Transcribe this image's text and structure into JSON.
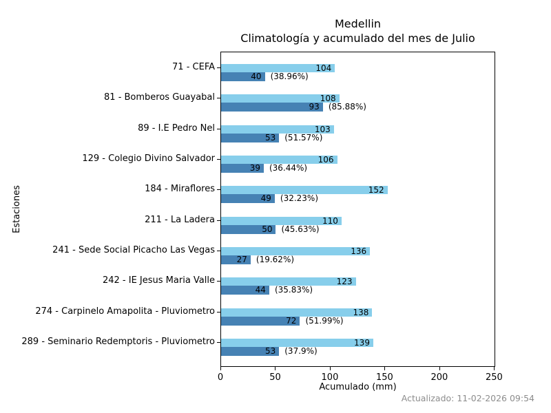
{
  "title": {
    "line1": "Medellin",
    "line2": "Climatología y acumulado del mes de Julio"
  },
  "footer": {
    "updated": "Actualizado: 11-02-2026 09:54"
  },
  "chart_data": {
    "type": "bar",
    "orientation": "horizontal",
    "title": "Medellin — Climatología y acumulado del mes de Julio",
    "xlabel": "Acumulado (mm)",
    "ylabel": "Estaciones",
    "xlim": [
      0,
      251
    ],
    "xticks": [
      0,
      50,
      100,
      150,
      200,
      250
    ],
    "grid": false,
    "legend": "none",
    "colors": {
      "climatologia": "#87CEEB",
      "acumulado": "#4682B4",
      "frame": "#000000",
      "footer_text": "#8c8c8c"
    },
    "categories": [
      "71 - CEFA",
      "81 - Bomberos Guayabal",
      "89 - I.E Pedro Nel",
      "129 - Colegio Divino Salvador",
      "184 - Miraflores",
      "211 - La Ladera",
      "241 - Sede Social Picacho Las Vegas",
      "242 - IE Jesus Maria Valle",
      "274 - Carpinelo Amapolita - Pluviometro",
      "289 - Seminario Redemptoris - Pluviometro"
    ],
    "series": [
      {
        "name": "Climatología",
        "color": "#87CEEB",
        "values": [
          104,
          108,
          103,
          106,
          152,
          110,
          136,
          123,
          138,
          139
        ]
      },
      {
        "name": "Acumulado",
        "color": "#4682B4",
        "values": [
          40,
          93,
          53,
          39,
          49,
          50,
          27,
          44,
          72,
          53
        ]
      }
    ],
    "percent_labels": [
      "(38.96%)",
      "(85.88%)",
      "(51.57%)",
      "(36.44%)",
      "(32.23%)",
      "(45.63%)",
      "(19.62%)",
      "(35.83%)",
      "(51.99%)",
      "(37.9%)"
    ]
  }
}
